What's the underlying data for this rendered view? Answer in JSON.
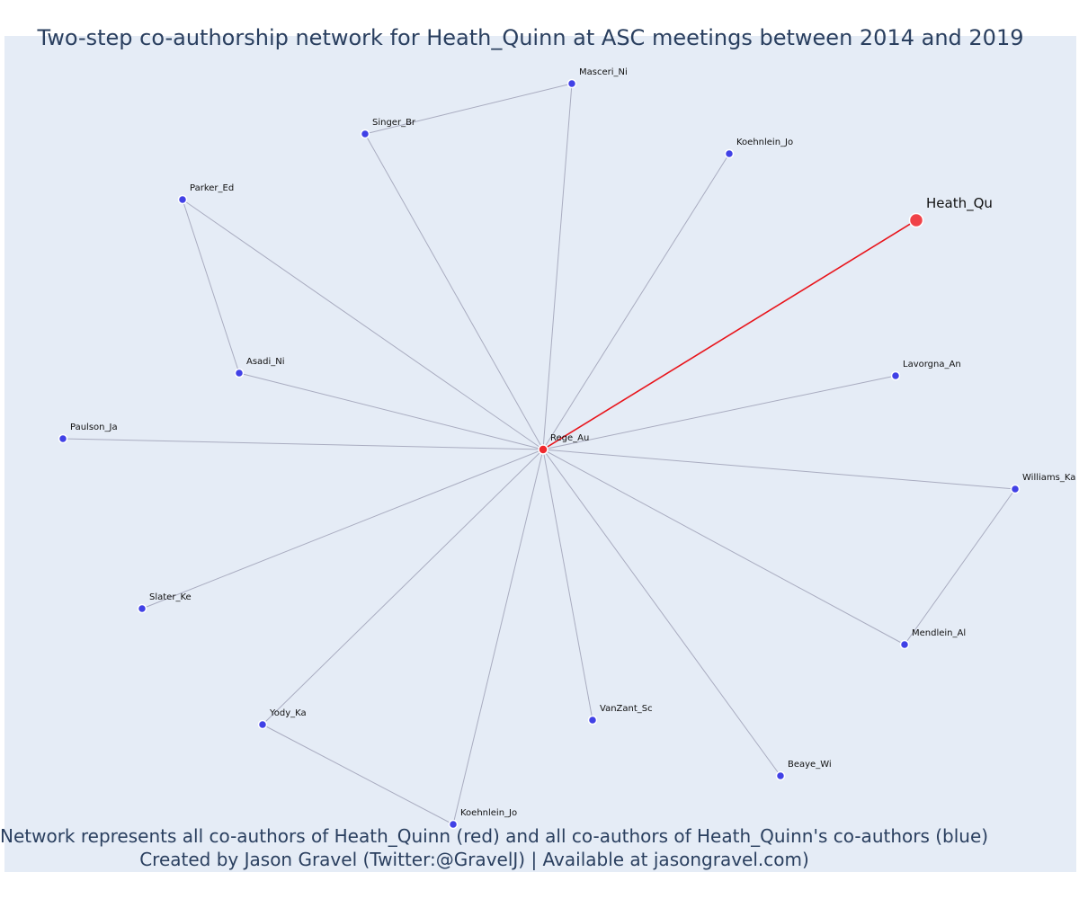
{
  "title": "Two-step co-authorship network for Heath_Quinn at ASC meetings between 2014 and 2019",
  "caption": {
    "line1": "Network represents all co-authors of Heath_Quinn (red) and all co-authors of Heath_Quinn's co-authors (blue)",
    "line2": "Created by Jason Gravel (Twitter:@GravelJ) | Available at jasongravel.com)"
  },
  "colors": {
    "background": "#e5ecf6",
    "edge": "#a9acc0",
    "focal_edge": "#e8141b",
    "coauthor_node": "#4141e6",
    "direct_coauthor_node": "#f0282d",
    "text": "#2a3f5f"
  },
  "nodes": [
    {
      "id": "heath_qu",
      "label": "Heath_Qu",
      "role": "focal"
    },
    {
      "id": "rege_au",
      "label": "Rege_Au",
      "role": "direct"
    },
    {
      "id": "masceri_ni",
      "label": "Masceri_Ni",
      "role": "second"
    },
    {
      "id": "singer_br",
      "label": "Singer_Br",
      "role": "second"
    },
    {
      "id": "koehnlein_jo_1",
      "label": "Koehnlein_Jo",
      "role": "second"
    },
    {
      "id": "parker_ed",
      "label": "Parker_Ed",
      "role": "second"
    },
    {
      "id": "asadi_ni",
      "label": "Asadi_Ni",
      "role": "second"
    },
    {
      "id": "lavorgna_an",
      "label": "Lavorgna_An",
      "role": "second"
    },
    {
      "id": "paulson_ja",
      "label": "Paulson_Ja",
      "role": "second"
    },
    {
      "id": "williams_ka",
      "label": "Williams_Ka",
      "role": "second"
    },
    {
      "id": "slater_ke",
      "label": "Slater_Ke",
      "role": "second"
    },
    {
      "id": "mendlein_al",
      "label": "Mendlein_Al",
      "role": "second"
    },
    {
      "id": "yody_ka",
      "label": "Yody_Ka",
      "role": "second"
    },
    {
      "id": "vanzant_sc",
      "label": "VanZant_Sc",
      "role": "second"
    },
    {
      "id": "beaye_wi",
      "label": "Beaye_Wi",
      "role": "second"
    },
    {
      "id": "koehnlein_jo_2",
      "label": "Koehnlein_Jo",
      "role": "second"
    }
  ],
  "edges": [
    {
      "source": "rege_au",
      "target": "heath_qu",
      "focal": true
    },
    {
      "source": "rege_au",
      "target": "masceri_ni"
    },
    {
      "source": "rege_au",
      "target": "singer_br"
    },
    {
      "source": "singer_br",
      "target": "masceri_ni"
    },
    {
      "source": "rege_au",
      "target": "koehnlein_jo_1"
    },
    {
      "source": "rege_au",
      "target": "parker_ed"
    },
    {
      "source": "parker_ed",
      "target": "asadi_ni"
    },
    {
      "source": "rege_au",
      "target": "asadi_ni"
    },
    {
      "source": "rege_au",
      "target": "lavorgna_an"
    },
    {
      "source": "rege_au",
      "target": "paulson_ja"
    },
    {
      "source": "rege_au",
      "target": "williams_ka"
    },
    {
      "source": "williams_ka",
      "target": "mendlein_al"
    },
    {
      "source": "rege_au",
      "target": "mendlein_al"
    },
    {
      "source": "rege_au",
      "target": "slater_ke"
    },
    {
      "source": "rege_au",
      "target": "yody_ka"
    },
    {
      "source": "yody_ka",
      "target": "koehnlein_jo_2"
    },
    {
      "source": "rege_au",
      "target": "koehnlein_jo_2"
    },
    {
      "source": "rege_au",
      "target": "vanzant_sc"
    },
    {
      "source": "rege_au",
      "target": "beaye_wi"
    }
  ]
}
